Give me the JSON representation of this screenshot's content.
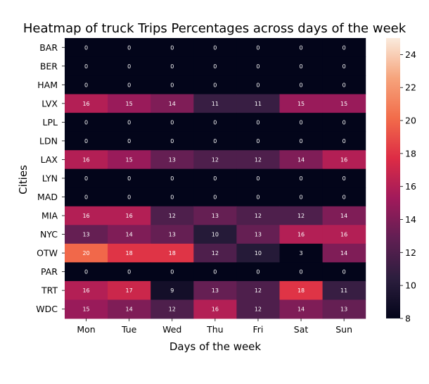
{
  "chart_data": {
    "type": "heatmap",
    "title": "Heatmap of truck Trips Percentages across days of the week",
    "xlabel": "Days of the week",
    "ylabel": "Cities",
    "x": [
      "Mon",
      "Tue",
      "Wed",
      "Thu",
      "Fri",
      "Sat",
      "Sun"
    ],
    "y": [
      "BAR",
      "BER",
      "HAM",
      "LVX",
      "LPL",
      "LDN",
      "LAX",
      "LYN",
      "MAD",
      "MIA",
      "NYC",
      "OTW",
      "PAR",
      "TRT",
      "WDC"
    ],
    "values": [
      [
        0,
        0,
        0,
        0,
        0,
        0,
        0
      ],
      [
        0,
        0,
        0,
        0,
        0,
        0,
        0
      ],
      [
        0,
        0,
        0,
        0,
        0,
        0,
        0
      ],
      [
        16,
        15,
        14,
        11,
        11,
        15,
        15
      ],
      [
        0,
        0,
        0,
        0,
        0,
        0,
        0
      ],
      [
        0,
        0,
        0,
        0,
        0,
        0,
        0
      ],
      [
        16,
        15,
        13,
        12,
        12,
        14,
        16
      ],
      [
        0,
        0,
        0,
        0,
        0,
        0,
        0
      ],
      [
        0,
        0,
        0,
        0,
        0,
        0,
        0
      ],
      [
        16,
        16,
        12,
        13,
        12,
        12,
        14
      ],
      [
        13,
        14,
        13,
        10,
        13,
        16,
        16
      ],
      [
        20,
        18,
        18,
        12,
        10,
        3,
        14
      ],
      [
        0,
        0,
        0,
        0,
        0,
        0,
        0
      ],
      [
        16,
        17,
        9,
        13,
        12,
        18,
        11
      ],
      [
        15,
        14,
        12,
        16,
        12,
        14,
        13
      ]
    ],
    "colorbar": {
      "vmin": 8,
      "vmax": 25,
      "ticks": [
        8,
        10,
        12,
        14,
        16,
        18,
        20,
        22,
        24
      ],
      "colormap": "rocket",
      "colormap_stops": [
        "#03051a",
        "#2c1e3e",
        "#611f53",
        "#a11a5b",
        "#dd2c45",
        "#f26c4a",
        "#f6a47c",
        "#faebdd"
      ]
    },
    "annotations": "cell values shown"
  }
}
